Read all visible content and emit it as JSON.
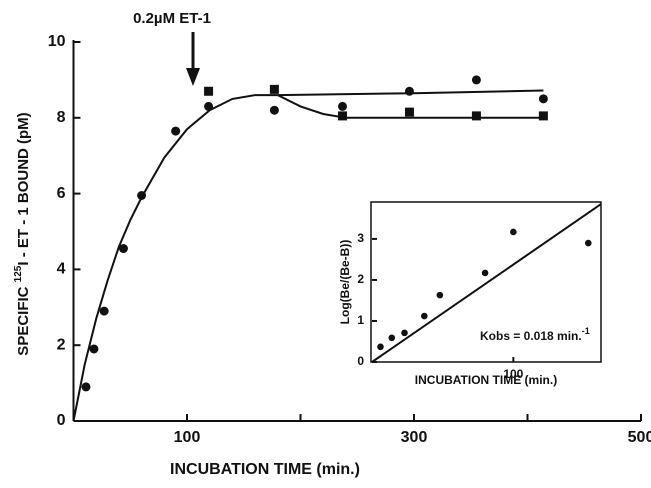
{
  "chart_data": [
    {
      "type": "scatter",
      "annotation": "0.2µM ET-1",
      "xlabel": "INCUBATION TIME (min.)",
      "ylabel": {
        "prefix": "SPECIFIC",
        "superscript": "125",
        "main": "I - ET - 1 BOUND (pM)"
      },
      "xlim": [
        0,
        500
      ],
      "ylim": [
        0,
        10
      ],
      "xticks": [
        100,
        300,
        500
      ],
      "minor_xticks": [
        200,
        400
      ],
      "yticks": [
        0,
        2,
        4,
        6,
        8,
        10
      ],
      "series": [
        {
          "marker": "circle",
          "color": "#111111",
          "x": [
            11,
            18,
            27,
            44,
            60,
            90,
            119,
            177,
            237,
            296,
            355,
            414
          ],
          "values": [
            0.9,
            1.9,
            2.9,
            4.55,
            5.95,
            7.65,
            8.3,
            8.2,
            8.3,
            8.7,
            9.0,
            8.5
          ]
        },
        {
          "marker": "square",
          "color": "#111111",
          "x": [
            119,
            177,
            237,
            296,
            355,
            414
          ],
          "values": [
            8.7,
            8.75,
            8.05,
            8.15,
            8.05,
            8.05
          ]
        },
        {
          "marker": "none",
          "color": "#111111",
          "x": [
            0,
            10,
            20,
            30,
            40,
            50,
            60,
            80,
            100,
            120,
            140,
            160,
            180
          ],
          "values": [
            0,
            1.5,
            2.7,
            3.7,
            4.6,
            5.3,
            5.9,
            6.95,
            7.7,
            8.2,
            8.5,
            8.6,
            8.6
          ]
        },
        {
          "marker": "none",
          "color": "#111111",
          "x": [
            180,
            300,
            414
          ],
          "values": [
            8.6,
            8.65,
            8.72
          ]
        },
        {
          "marker": "none",
          "color": "#111111",
          "x": [
            180,
            200,
            220,
            240,
            300,
            414
          ],
          "values": [
            8.6,
            8.3,
            8.1,
            8.0,
            8.0,
            8.0
          ]
        }
      ]
    },
    {
      "type": "scatter",
      "xlabel": "INCUBATION TIME (min.)",
      "ylabel": "Log(Be/(Be-B))",
      "annotation": {
        "main": "Kobs = 0.018 min.",
        "superscript": "-1"
      },
      "xlim": [
        0,
        162
      ],
      "ylim": [
        0,
        3.9
      ],
      "xticks": [
        100
      ],
      "yticks": [
        0,
        1,
        2,
        3
      ],
      "series": [
        {
          "marker": "circle",
          "color": "#111111",
          "x": [
            6,
            14,
            23,
            37,
            48,
            80,
            100,
            153
          ],
          "values": [
            0.37,
            0.59,
            0.71,
            1.12,
            1.63,
            2.17,
            3.17,
            2.9
          ]
        },
        {
          "marker": "none",
          "color": "#111111",
          "x": [
            0,
            162
          ],
          "values": [
            0,
            3.85
          ]
        }
      ]
    }
  ]
}
